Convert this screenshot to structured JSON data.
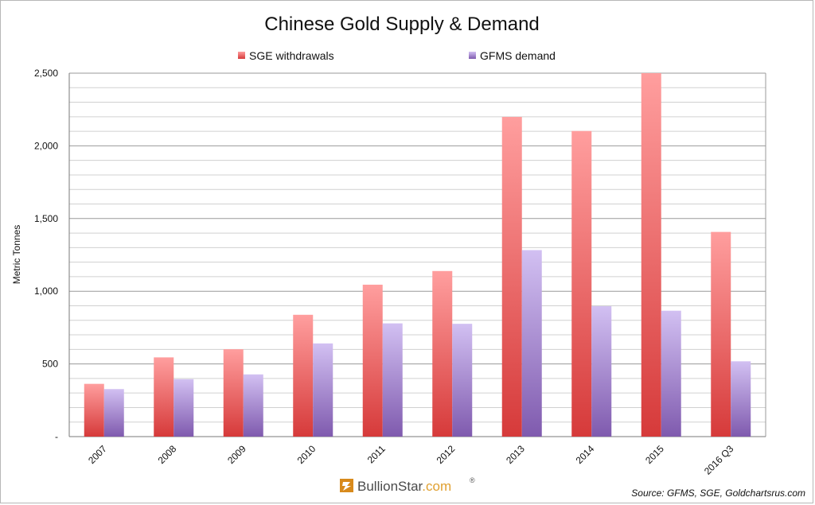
{
  "chart_data": {
    "type": "bar",
    "title": "Chinese Gold Supply & Demand",
    "ylabel": "Metric Tonnes",
    "xlabel": "",
    "categories": [
      "2007",
      "2008",
      "2009",
      "2010",
      "2011",
      "2012",
      "2013",
      "2014",
      "2015",
      "2016 Q3"
    ],
    "series": [
      {
        "name": "SGE withdrawals",
        "color": "#e05050",
        "values": [
          363,
          545,
          601,
          838,
          1045,
          1139,
          2199,
          2102,
          2500,
          1408
        ]
      },
      {
        "name": "GFMS demand",
        "color": "#9b7bc4",
        "values": [
          327,
          395,
          428,
          641,
          779,
          776,
          1283,
          897,
          866,
          518
        ]
      }
    ],
    "ylim": [
      0,
      2500
    ],
    "yticks": [
      0,
      500,
      1000,
      1500,
      2000,
      2500
    ],
    "ytick_labels": [
      "-",
      "500",
      "1,000",
      "1,500",
      "2,000",
      "2,500"
    ],
    "minor_gridline_step": 100,
    "grid": true,
    "legend_position": "top-center"
  },
  "source": "Source: GFMS, SGE, Goldchartsrus.com",
  "brand": {
    "name": "BullionStar",
    "suffix": ".com",
    "mark": "®"
  }
}
